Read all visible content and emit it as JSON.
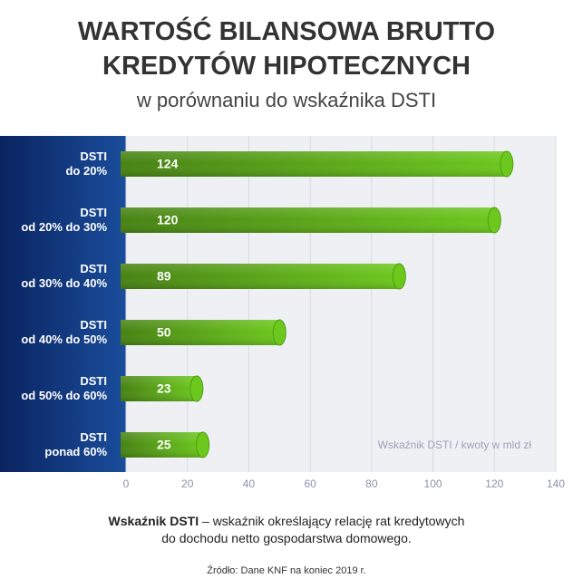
{
  "chart_data": {
    "type": "bar",
    "orientation": "horizontal",
    "title": "WARTOŚĆ BILANSOWA BRUTTO\nKREDYTÓW HIPOTECZNYCH",
    "subtitle": "w porównaniu do wskaźnika DSTI",
    "categories": [
      "DSTI\ndo 20%",
      "DSTI\nod 20% do 30%",
      "DSTI\nod 30% do 40%",
      "DSTI\nod 40% do 50%",
      "DSTI\nod 50% do 60%",
      "DSTI\nponad 60%"
    ],
    "values": [
      124,
      120,
      89,
      50,
      23,
      25
    ],
    "color": "#6cc81c",
    "xlim": [
      0,
      140
    ],
    "xticks": [
      0,
      20,
      40,
      60,
      80,
      100,
      120,
      140
    ],
    "grid": true,
    "annotation": "Wskaźnik DSTI / kwoty w mld zł",
    "footnote_term": "Wskaźnik DSTI",
    "footnote_text": " – wskaźnik określający relację rat kredytowych\ndo dochodu netto gospodarstwa domowego.",
    "source": "Źródło: Dane KNF na koniec 2019 r."
  }
}
